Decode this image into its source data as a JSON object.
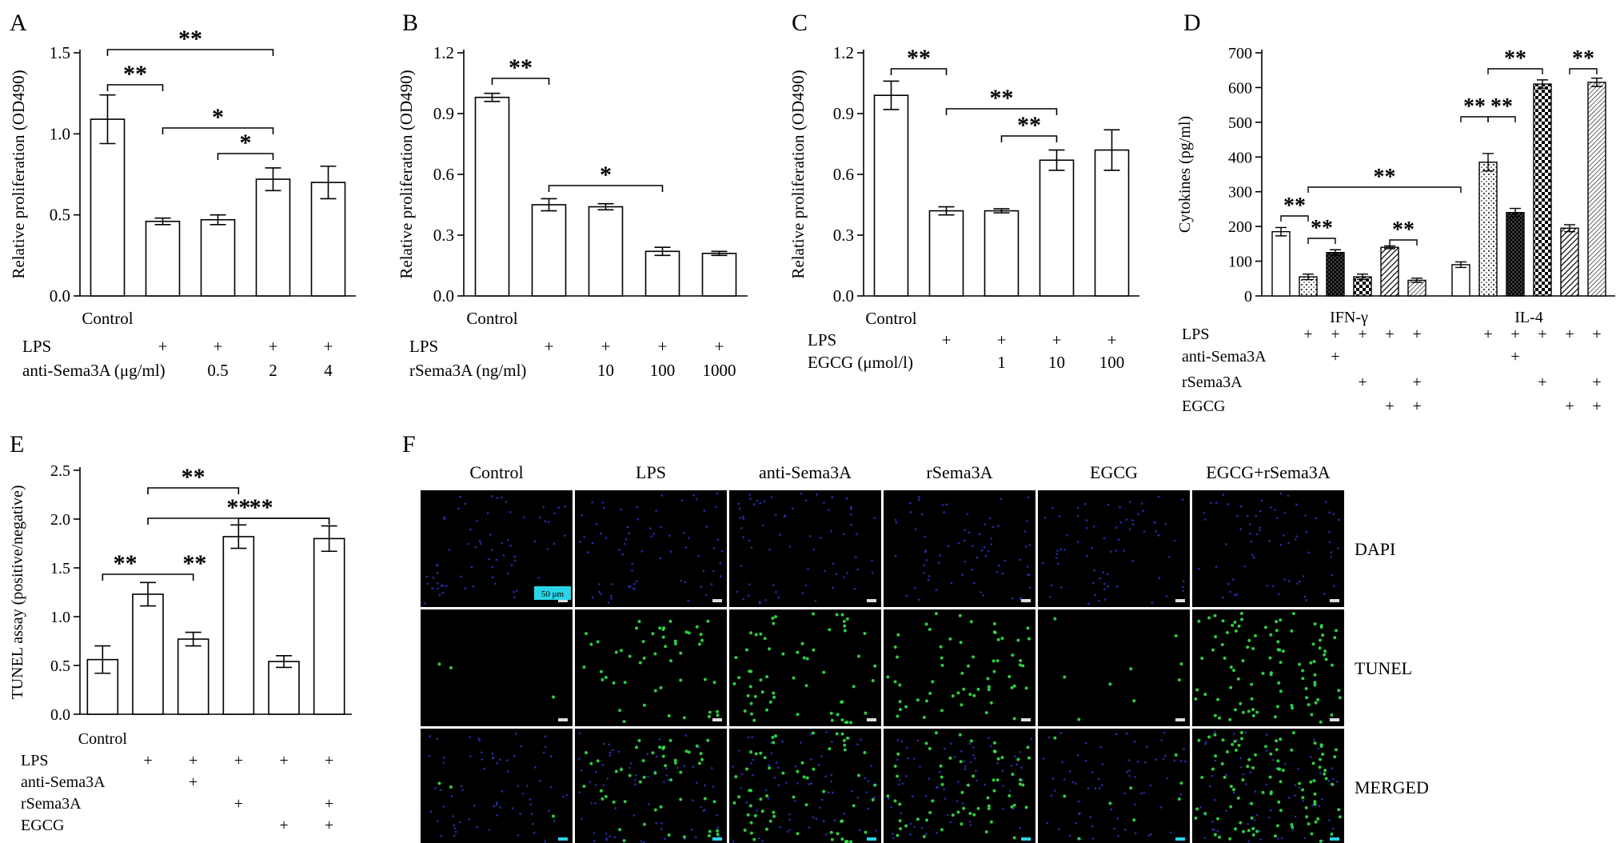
{
  "panel_letters": {
    "A": "A",
    "B": "B",
    "C": "C",
    "D": "D",
    "E": "E",
    "F": "F"
  },
  "colors": {
    "bar_fill": "#ffffff",
    "stroke": "#000000",
    "dapi": "#2d3ad8",
    "tunel": "#34e04a",
    "scale_bar": "#2ad4e8"
  },
  "chart_data": [
    {
      "id": "A",
      "type": "bar",
      "ylabel": "Relative proliferation (OD490)",
      "ylim": [
        0,
        1.5
      ],
      "yticks": [
        "0.0",
        "0.5",
        "1.0",
        "1.5"
      ],
      "categories": [
        "Control",
        "",
        "",
        "",
        ""
      ],
      "values": [
        1.09,
        0.46,
        0.47,
        0.72,
        0.7
      ],
      "errors": [
        0.15,
        0.02,
        0.03,
        0.07,
        0.1
      ],
      "conditions": [
        {
          "label": "LPS",
          "marks": [
            "",
            "+",
            "+",
            "+",
            "+"
          ]
        },
        {
          "label": "anti-Sema3A (μg/ml)",
          "marks": [
            "",
            "",
            "0.5",
            "2",
            "4"
          ]
        }
      ],
      "significance": [
        {
          "from": 0,
          "to": 1,
          "label": "**"
        },
        {
          "from": 0,
          "to": 3,
          "label": "**"
        },
        {
          "from": 1,
          "to": 3,
          "label": "*"
        },
        {
          "from": 2,
          "to": 3,
          "label": "*"
        }
      ]
    },
    {
      "id": "B",
      "type": "bar",
      "ylabel": "Relative proliferation (OD490)",
      "ylim": [
        0,
        1.2
      ],
      "yticks": [
        "0.0",
        "0.3",
        "0.6",
        "0.9",
        "1.2"
      ],
      "categories": [
        "Control",
        "",
        "",
        "",
        ""
      ],
      "values": [
        0.98,
        0.45,
        0.44,
        0.22,
        0.21
      ],
      "errors": [
        0.02,
        0.03,
        0.015,
        0.02,
        0.01
      ],
      "conditions": [
        {
          "label": "LPS",
          "marks": [
            "",
            "+",
            "+",
            "+",
            "+"
          ]
        },
        {
          "label": "rSema3A (ng/ml)",
          "marks": [
            "",
            "",
            "10",
            "100",
            "1000"
          ]
        }
      ],
      "significance": [
        {
          "from": 0,
          "to": 1,
          "label": "**"
        },
        {
          "from": 1,
          "to": 3,
          "label": "*"
        }
      ]
    },
    {
      "id": "C",
      "type": "bar",
      "ylabel": "Relative proliferation (OD490)",
      "ylim": [
        0,
        1.2
      ],
      "yticks": [
        "0.0",
        "0.3",
        "0.6",
        "0.9",
        "1.2"
      ],
      "categories": [
        "Control",
        "",
        "",
        "",
        ""
      ],
      "values": [
        0.99,
        0.42,
        0.42,
        0.67,
        0.72
      ],
      "errors": [
        0.07,
        0.02,
        0.01,
        0.05,
        0.1
      ],
      "conditions": [
        {
          "label": "LPS",
          "marks": [
            "",
            "+",
            "+",
            "+",
            "+"
          ]
        },
        {
          "label": "EGCG (μmol/l)",
          "marks": [
            "",
            "",
            "1",
            "10",
            "100"
          ]
        }
      ],
      "significance": [
        {
          "from": 0,
          "to": 1,
          "label": "**"
        },
        {
          "from": 1,
          "to": 3,
          "label": "**"
        },
        {
          "from": 2,
          "to": 3,
          "label": "**"
        }
      ]
    },
    {
      "id": "D",
      "type": "bar",
      "ylabel": "Cytokines (pg/ml)",
      "ylim": [
        0,
        700
      ],
      "yticks": [
        "0",
        "100",
        "200",
        "300",
        "400",
        "500",
        "600",
        "700"
      ],
      "groups": [
        "IFN-γ",
        "IL-4"
      ],
      "series": [
        {
          "pattern": "open",
          "values": [
            185,
            90
          ],
          "errors": [
            12,
            8
          ]
        },
        {
          "pattern": "dots",
          "values": [
            55,
            385
          ],
          "errors": [
            8,
            25
          ]
        },
        {
          "pattern": "crosshatch",
          "values": [
            125,
            240
          ],
          "errors": [
            8,
            12
          ]
        },
        {
          "pattern": "checker",
          "values": [
            55,
            610
          ],
          "errors": [
            8,
            12
          ]
        },
        {
          "pattern": "diagonal",
          "values": [
            140,
            195
          ],
          "errors": [
            4,
            10
          ]
        },
        {
          "pattern": "diagonal-fine",
          "values": [
            45,
            615
          ],
          "errors": [
            6,
            12
          ]
        }
      ],
      "conditions": [
        {
          "label": "LPS",
          "marks": [
            "",
            "+",
            "+",
            "+",
            "+",
            "+"
          ]
        },
        {
          "label": "anti-Sema3A",
          "marks": [
            "",
            "",
            "+",
            "",
            "",
            ""
          ]
        },
        {
          "label": "rSema3A",
          "marks": [
            "",
            "",
            "",
            "+",
            "",
            "+"
          ]
        },
        {
          "label": "EGCG",
          "marks": [
            "",
            "",
            "",
            "",
            "+",
            "+"
          ]
        }
      ],
      "significance": [
        {
          "group": 0,
          "from": 0,
          "to": 1,
          "label": "**"
        },
        {
          "group": 0,
          "from": 1,
          "to": 2,
          "label": "**"
        },
        {
          "group": 0,
          "from": 4,
          "to": 5,
          "label": "**"
        },
        {
          "group": 1,
          "from": 0,
          "to": 1,
          "label": "**"
        },
        {
          "group": 1,
          "from": 1,
          "to": 2,
          "label": "**"
        },
        {
          "group": 1,
          "from": 1,
          "to": 3,
          "label": "**"
        },
        {
          "group": 1,
          "from": 4,
          "to": 5,
          "label": "**"
        }
      ],
      "cross_significance": [
        {
          "from_group": 0,
          "from_bar": 1,
          "to_group": 1,
          "to_bar": 0,
          "label": "**"
        }
      ]
    },
    {
      "id": "E",
      "type": "bar",
      "ylabel": "TUNEL assay (positive/negative)",
      "ylim": [
        0,
        2.5
      ],
      "yticks": [
        "0.0",
        "0.5",
        "1.0",
        "1.5",
        "2.0",
        "2.5"
      ],
      "categories": [
        "Control",
        "",
        "",
        "",
        "",
        ""
      ],
      "values": [
        0.56,
        1.23,
        0.77,
        1.82,
        0.54,
        1.8
      ],
      "errors": [
        0.14,
        0.12,
        0.07,
        0.12,
        0.06,
        0.13
      ],
      "conditions": [
        {
          "label": "LPS",
          "marks": [
            "",
            "+",
            "+",
            "+",
            "+",
            "+"
          ]
        },
        {
          "label": "anti-Sema3A",
          "marks": [
            "",
            "",
            "+",
            "",
            "",
            ""
          ]
        },
        {
          "label": "rSema3A",
          "marks": [
            "",
            "",
            "",
            "+",
            "",
            "+"
          ]
        },
        {
          "label": "EGCG",
          "marks": [
            "",
            "",
            "",
            "",
            "+",
            "+"
          ]
        }
      ],
      "significance": [
        {
          "from": 0,
          "to": 2,
          "label": "**",
          "label_at": 1
        },
        {
          "from": 1,
          "to": 3,
          "label": "**"
        },
        {
          "from": 1,
          "to": 5,
          "label": "**"
        },
        {
          "from": 3,
          "to": 5,
          "label": "**",
          "label_at": 4
        },
        {
          "from": 1,
          "to": 2,
          "label": "**",
          "label_at": 2
        }
      ]
    }
  ],
  "microscopy": {
    "columns": [
      "Control",
      "LPS",
      "anti-Sema3A",
      "rSema3A",
      "EGCG",
      "EGCG+rSema3A"
    ],
    "rows": [
      "DAPI",
      "TUNEL",
      "MERGED"
    ],
    "tunel_density": [
      0.03,
      0.45,
      0.55,
      0.55,
      0.08,
      0.85
    ],
    "scale_bar_label": "50 μm"
  }
}
